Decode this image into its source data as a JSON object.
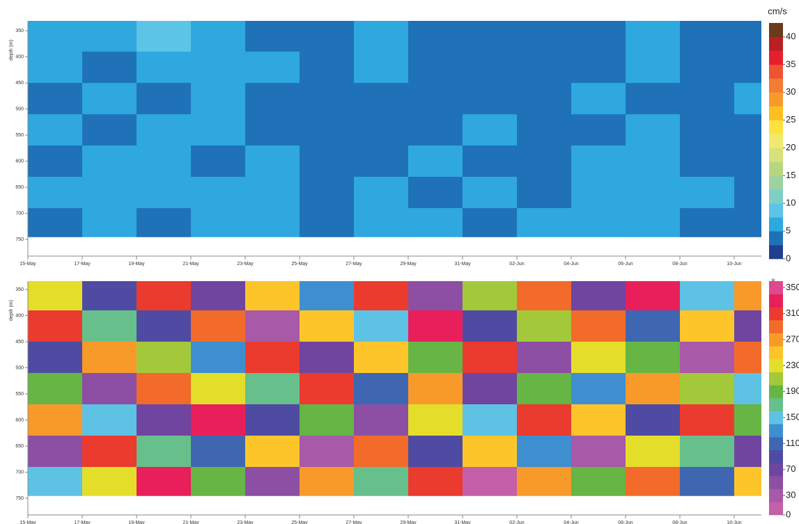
{
  "chart_data": [
    {
      "type": "heatmap",
      "y_label": "depth (m)",
      "colorbar_label": "cm/s",
      "xlim": [
        "15-May",
        "11-Jun"
      ],
      "xticks": [
        "15-May",
        "17-May",
        "19-May",
        "21-May",
        "23-May",
        "25-May",
        "27-May",
        "29-May",
        "31-May",
        "02-Jun",
        "04-Jun",
        "06-Jun",
        "08-Jun",
        "10-Jun"
      ],
      "ylim": [
        782,
        331
      ],
      "yticks": [
        350,
        400,
        450,
        500,
        550,
        600,
        650,
        700,
        750
      ],
      "x_bins": [
        "15-May",
        "17-May",
        "19-May",
        "21-May",
        "23-May",
        "25-May",
        "27-May",
        "29-May",
        "31-May",
        "02-Jun",
        "04-Jun",
        "06-Jun",
        "08-Jun",
        "10-Jun",
        "11-Jun"
      ],
      "y_bins": [
        331,
        390,
        450,
        510,
        570,
        630,
        690,
        745
      ],
      "z": [
        [
          7,
          6,
          8,
          7,
          4,
          3,
          5,
          3,
          4,
          3,
          4,
          5,
          3,
          4
        ],
        [
          5,
          4,
          5,
          6,
          5,
          3,
          6,
          4,
          3,
          4,
          3,
          5,
          3,
          4
        ],
        [
          4,
          6,
          4,
          5,
          4,
          3,
          4,
          3,
          4,
          3,
          5,
          4,
          3,
          7
        ],
        [
          5,
          4,
          5,
          6,
          4,
          3,
          3,
          4,
          5,
          3,
          4,
          5,
          4,
          4
        ],
        [
          4,
          6,
          5,
          4,
          5,
          4,
          4,
          5,
          3,
          4,
          5,
          6,
          4,
          4
        ],
        [
          5,
          7,
          5,
          5,
          5,
          4,
          5,
          4,
          5,
          3,
          6,
          7,
          5,
          4
        ],
        [
          4,
          5,
          4,
          6,
          7,
          4,
          5,
          5,
          3,
          5,
          5,
          7,
          4,
          4
        ]
      ],
      "levels": [
        0,
        2.5,
        5,
        7.5,
        10,
        12.5,
        15,
        17.5,
        20,
        22.5,
        25,
        27.5,
        30,
        32.5,
        35,
        37.5,
        40,
        42.5
      ],
      "colors": [
        "#213f8f",
        "#1f72b8",
        "#2ea8df",
        "#5cc4e6",
        "#7fcfc8",
        "#9ed3a0",
        "#b7d77f",
        "#d8e27a",
        "#f1ea6e",
        "#fde23f",
        "#fdbe1f",
        "#f89a2a",
        "#f47b36",
        "#ef5331",
        "#e3202c",
        "#b82025",
        "#6b3a1a"
      ],
      "colorbar_ticks": [
        0,
        5,
        10,
        15,
        20,
        25,
        30,
        35,
        40
      ]
    },
    {
      "type": "heatmap",
      "y_label": "depth (m)",
      "colorbar_label": "°",
      "xlim": [
        "15-May",
        "11-Jun"
      ],
      "xticks": [
        "15-May",
        "17-May",
        "19-May",
        "21-May",
        "23-May",
        "25-May",
        "27-May",
        "29-May",
        "31-May",
        "02-Jun",
        "04-Jun",
        "06-Jun",
        "08-Jun",
        "10-Jun"
      ],
      "ylim": [
        782,
        334
      ],
      "yticks": [
        350,
        400,
        450,
        500,
        550,
        600,
        650,
        700,
        750
      ],
      "x_bins": [
        "15-May",
        "17-May",
        "19-May",
        "21-May",
        "23-May",
        "25-May",
        "27-May",
        "29-May",
        "31-May",
        "02-Jun",
        "04-Jun",
        "06-Jun",
        "08-Jun",
        "10-Jun",
        "11-Jun"
      ],
      "y_bins": [
        334,
        390,
        450,
        510,
        570,
        630,
        690,
        745
      ],
      "z": [
        [
          230,
          90,
          310,
          60,
          250,
          120,
          300,
          40,
          200,
          280,
          70,
          320,
          150,
          260
        ],
        [
          300,
          170,
          80,
          280,
          20,
          240,
          150,
          330,
          90,
          210,
          290,
          110,
          250,
          60
        ],
        [
          80,
          260,
          200,
          130,
          310,
          70,
          250,
          180,
          300,
          50,
          230,
          190,
          30,
          290
        ],
        [
          190,
          50,
          290,
          220,
          160,
          300,
          100,
          260,
          60,
          180,
          130,
          270,
          210,
          140
        ],
        [
          260,
          140,
          60,
          330,
          90,
          190,
          40,
          220,
          150,
          310,
          250,
          80,
          300,
          190
        ],
        [
          40,
          310,
          170,
          110,
          240,
          30,
          280,
          90,
          250,
          120,
          20,
          230,
          160,
          70
        ],
        [
          150,
          230,
          320,
          190,
          50,
          270,
          170,
          310,
          10,
          260,
          190,
          290,
          100,
          240
        ]
      ],
      "levels": [
        0,
        20,
        40,
        60,
        80,
        100,
        120,
        140,
        160,
        180,
        200,
        220,
        240,
        260,
        280,
        300,
        320,
        340,
        360
      ],
      "colors": [
        "#c55fa8",
        "#a859a8",
        "#8c4fa4",
        "#6f45a0",
        "#4f4ba2",
        "#3f67b1",
        "#3f8fd0",
        "#5ec2e5",
        "#67c08b",
        "#66b545",
        "#a3c93a",
        "#e4de2a",
        "#fdc52a",
        "#f89a2a",
        "#f26b2a",
        "#eb3a2e",
        "#e81f5a",
        "#e0488f"
      ],
      "colorbar_ticks": [
        0,
        30,
        70,
        110,
        150,
        190,
        230,
        270,
        310,
        350
      ]
    }
  ]
}
